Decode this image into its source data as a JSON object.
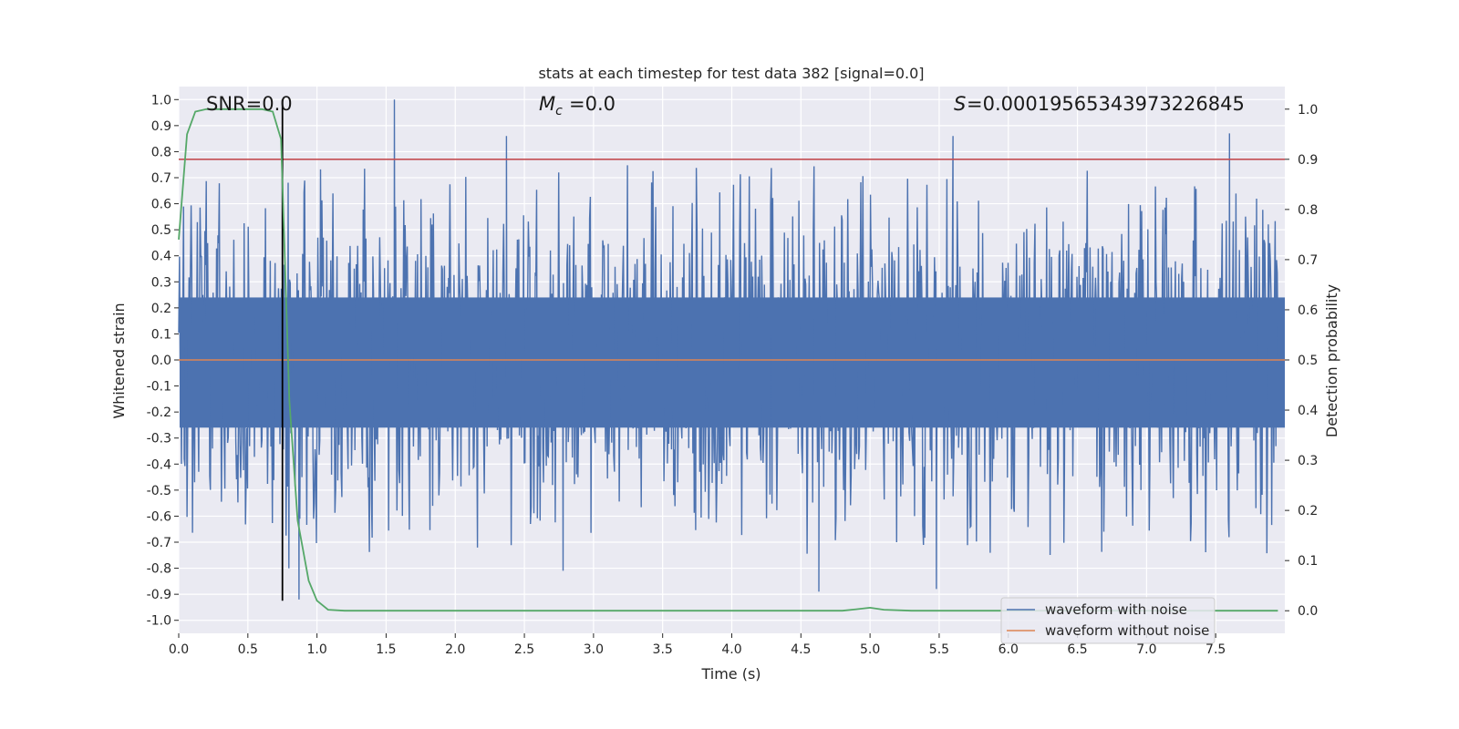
{
  "chart_data": {
    "type": "line",
    "title": "stats at each timestep for test data 382 [signal=0.0]",
    "xlabel": "Time (s)",
    "ylabel": "Whitened strain",
    "y2label": "Detection probability",
    "xlim": [
      0.0,
      8.0
    ],
    "ylim": [
      -1.05,
      1.05
    ],
    "y2lim": [
      -0.045,
      1.045
    ],
    "xticks": [
      "0.0",
      "0.5",
      "1.0",
      "1.5",
      "2.0",
      "2.5",
      "3.0",
      "3.5",
      "4.0",
      "4.5",
      "5.0",
      "5.5",
      "6.0",
      "6.5",
      "7.0",
      "7.5"
    ],
    "yticks": [
      "1.0",
      "0.9",
      "0.8",
      "0.7",
      "0.6",
      "0.5",
      "0.4",
      "0.3",
      "0.2",
      "0.1",
      "0.0",
      "-0.1",
      "-0.2",
      "-0.3",
      "-0.4",
      "-0.5",
      "-0.6",
      "-0.7",
      "-0.8",
      "-0.9",
      "-1.0"
    ],
    "y2ticks": [
      "1.0",
      "0.9",
      "0.8",
      "0.7",
      "0.6",
      "0.5",
      "0.4",
      "0.3",
      "0.2",
      "0.1",
      "0.0"
    ],
    "grid": true,
    "legend_position": "lower-right",
    "annotations": {
      "snr": "SNR=0.0",
      "mc": "=0.0",
      "s": "=0.00019565343973226845"
    },
    "series": [
      {
        "name": "waveform with noise",
        "color": "#4c72b0",
        "axis": "left",
        "description_values": {
          "typical_band": [
            -0.4,
            0.4
          ],
          "max_peaks": [
            [
              1.56,
              1.0
            ],
            [
              2.37,
              0.86
            ],
            [
              5.6,
              0.86
            ],
            [
              7.6,
              0.87
            ]
          ],
          "min_peaks": [
            [
              0.87,
              -0.92
            ],
            [
              4.63,
              -0.89
            ],
            [
              5.48,
              -0.88
            ],
            [
              2.78,
              -0.81
            ]
          ]
        }
      },
      {
        "name": "waveform without noise",
        "color": "#dd8452",
        "axis": "left",
        "x": [
          0.0,
          8.0
        ],
        "y": [
          0.0,
          0.0
        ]
      },
      {
        "name": "",
        "color": "#55a868",
        "axis": "right",
        "x": [
          0.0,
          0.06,
          0.12,
          0.2,
          0.3,
          0.4,
          0.5,
          0.6,
          0.68,
          0.74,
          0.8,
          0.86,
          0.94,
          1.0,
          1.08,
          1.2,
          2.0,
          3.0,
          4.0,
          4.8,
          4.9,
          5.0,
          5.1,
          5.3,
          6.0,
          7.0,
          7.95
        ],
        "y": [
          0.74,
          0.95,
          0.995,
          1.0,
          1.0,
          1.0,
          1.0,
          1.0,
          0.995,
          0.94,
          0.42,
          0.18,
          0.06,
          0.02,
          0.002,
          0.0,
          0.0,
          0.0,
          0.0,
          0.0,
          0.003,
          0.006,
          0.002,
          0.0,
          0.0,
          0.0,
          0.0
        ]
      }
    ],
    "reference_lines": [
      {
        "orientation": "horizontal",
        "axis": "right",
        "value": 0.9,
        "color": "#c44e52"
      },
      {
        "orientation": "vertical",
        "value": 0.75,
        "from_y": -0.925,
        "to_y": 1.0,
        "color": "#000000"
      }
    ]
  }
}
